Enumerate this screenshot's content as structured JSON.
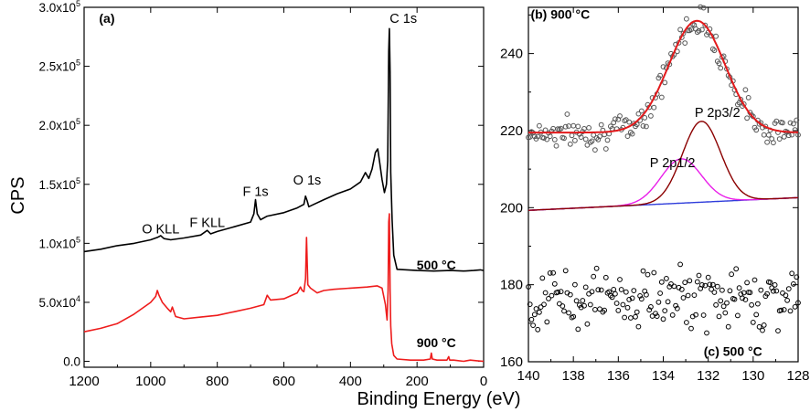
{
  "chart_data": [
    {
      "panel": "(a)",
      "type": "line",
      "title": "",
      "xlabel": "Binding Energy (eV)",
      "ylabel": "CPS",
      "xlim": [
        1200,
        0
      ],
      "ylim": [
        -5000,
        300000
      ],
      "xticks": [
        1200,
        1000,
        800,
        600,
        400,
        200,
        0
      ],
      "yticks": [
        {
          "value": 0,
          "mantissa": "0.0",
          "exp": ""
        },
        {
          "value": 50000,
          "mantissa": "5.0x10",
          "exp": "4"
        },
        {
          "value": 100000,
          "mantissa": "1.0x10",
          "exp": "5"
        },
        {
          "value": 150000,
          "mantissa": "1.5x10",
          "exp": "5"
        },
        {
          "value": 200000,
          "mantissa": "2.0x10",
          "exp": "5"
        },
        {
          "value": 250000,
          "mantissa": "2.5x10",
          "exp": "5"
        },
        {
          "value": 300000,
          "mantissa": "3.0x10",
          "exp": "5"
        }
      ],
      "series": [
        {
          "name": "500 °C",
          "color": "#000000",
          "x": [
            1200,
            1150,
            1100,
            1050,
            1000,
            980,
            970,
            960,
            940,
            900,
            850,
            830,
            820,
            800,
            750,
            700,
            690,
            685,
            680,
            670,
            650,
            600,
            560,
            540,
            535,
            530,
            525,
            510,
            480,
            440,
            400,
            370,
            355,
            345,
            335,
            325,
            318,
            312,
            305,
            298,
            292,
            288,
            285,
            283,
            281,
            279,
            275,
            270,
            260,
            200,
            150,
            100,
            60,
            30,
            10,
            0
          ],
          "y": [
            93000,
            95000,
            98000,
            100000,
            103000,
            105000,
            106500,
            104000,
            103000,
            104500,
            107000,
            111000,
            108000,
            110000,
            114000,
            118000,
            125000,
            137000,
            125000,
            120000,
            123000,
            126000,
            130000,
            133000,
            140000,
            136000,
            131000,
            133000,
            137000,
            142000,
            146000,
            152000,
            160000,
            155000,
            163000,
            177000,
            180000,
            168000,
            154000,
            143000,
            150000,
            170000,
            263000,
            282000,
            245000,
            160000,
            120000,
            90000,
            78000,
            77000,
            76500,
            77000,
            76500,
            77000,
            77500,
            77000
          ]
        },
        {
          "name": "900 °C",
          "color": "#ee1c1c",
          "x": [
            1200,
            1150,
            1100,
            1050,
            1000,
            985,
            980,
            975,
            965,
            950,
            940,
            935,
            925,
            900,
            850,
            800,
            750,
            700,
            660,
            650,
            640,
            600,
            560,
            550,
            545,
            540,
            535,
            532,
            528,
            520,
            510,
            500,
            480,
            450,
            400,
            350,
            320,
            305,
            295,
            290,
            287,
            285,
            283,
            281,
            279,
            276,
            270,
            260,
            220,
            180,
            160,
            157,
            154,
            140,
            110,
            105,
            102,
            90,
            60,
            40,
            20,
            0
          ],
          "y": [
            25000,
            28000,
            32000,
            40000,
            50000,
            55000,
            60000,
            56000,
            50000,
            45000,
            42000,
            46000,
            38000,
            36000,
            37500,
            39000,
            42000,
            45000,
            48000,
            56000,
            52000,
            53000,
            58000,
            63000,
            60000,
            59000,
            70000,
            105000,
            65000,
            62000,
            60000,
            58000,
            60000,
            61000,
            62000,
            63000,
            64000,
            62000,
            48000,
            35000,
            60000,
            118000,
            125000,
            60000,
            30000,
            15000,
            5000,
            2000,
            1000,
            1000,
            2000,
            7000,
            2000,
            1000,
            1000,
            4000,
            1000,
            1000,
            0,
            1000,
            500,
            0
          ]
        }
      ],
      "annotations": [
        {
          "text": "(a)",
          "x": 1155,
          "y": 287000,
          "bold": true
        },
        {
          "text": "C 1s",
          "x": 282,
          "y": 287000,
          "bold": false
        },
        {
          "text": "O 1s",
          "x": 530,
          "y": 150000,
          "bold": false
        },
        {
          "text": "F 1s",
          "x": 685,
          "y": 140000,
          "bold": false
        },
        {
          "text": "F KLL",
          "x": 830,
          "y": 114000,
          "bold": false
        },
        {
          "text": "O KLL",
          "x": 970,
          "y": 108500,
          "bold": false
        },
        {
          "text": "500 °C",
          "x": 142,
          "y": 78000,
          "bold": true
        },
        {
          "text": "900 °C",
          "x": 142,
          "y": 12000,
          "bold": true
        }
      ]
    },
    {
      "panel": "(b)/(c)",
      "type": "scatter",
      "xlabel": "",
      "ylabel": "",
      "xlim": [
        140,
        128
      ],
      "ylim": [
        160,
        252
      ],
      "xticks": [
        140,
        138,
        136,
        134,
        132,
        130,
        128
      ],
      "yticks": [
        160,
        180,
        200,
        220,
        240
      ],
      "fit_curves": [
        {
          "name": "P 2p1/2",
          "color": "#e91ee9",
          "center": 133.2,
          "height": 11.5,
          "sigma": 0.9
        },
        {
          "name": "P 2p3/2",
          "color": "#8b0000",
          "center": 132.3,
          "height": 21.0,
          "sigma": 0.85
        },
        {
          "name": "background",
          "color": "#2f3ddb",
          "start": 199.3,
          "end": 202.6
        },
        {
          "name": "envelope",
          "color": "#e31a1c"
        }
      ],
      "scatter_series": [
        {
          "name": "900 °C",
          "baseline": 219.5,
          "center": 132.5,
          "height": 29,
          "sigma": 1.25,
          "noise": 3.3,
          "color": "#555555"
        },
        {
          "name": "500 °C",
          "mean": 176.5,
          "noise": 6.5,
          "color": "#000000"
        }
      ],
      "annotations": [
        {
          "text": "(b)  900 °C",
          "x": 139.9,
          "y": 249,
          "bold": true
        },
        {
          "text": "P 2p3/2",
          "x": 132.6,
          "y": 223.5,
          "bold": false
        },
        {
          "text": "P 2p1/2",
          "x": 134.6,
          "y": 210.5,
          "bold": false
        },
        {
          "text": "(c)  500 °C",
          "x": 132.2,
          "y": 161.5,
          "bold": true
        }
      ]
    }
  ]
}
